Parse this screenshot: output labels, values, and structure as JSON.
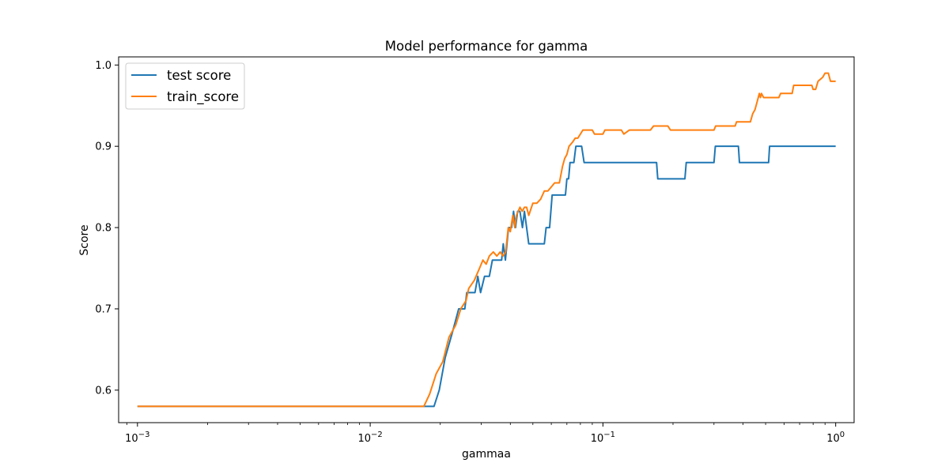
{
  "chart_data": {
    "type": "line",
    "title": "Model performance for gamma",
    "xlabel": "gammaa",
    "ylabel": "Score",
    "xscale": "log",
    "xlim": [
      0.00083,
      1.2
    ],
    "ylim": [
      0.56,
      1.01
    ],
    "x_ticks": [
      {
        "value": 0.001,
        "base": "10",
        "exp": "−3"
      },
      {
        "value": 0.01,
        "base": "10",
        "exp": "−2"
      },
      {
        "value": 0.1,
        "base": "10",
        "exp": "−1"
      },
      {
        "value": 1,
        "base": "10",
        "exp": "0"
      }
    ],
    "y_ticks": [
      {
        "value": 0.6,
        "label": "0.6"
      },
      {
        "value": 0.7,
        "label": "0.7"
      },
      {
        "value": 0.8,
        "label": "0.8"
      },
      {
        "value": 0.9,
        "label": "0.9"
      },
      {
        "value": 1.0,
        "label": "1.0"
      }
    ],
    "grid": false,
    "legend_position": "upper-left",
    "series": [
      {
        "name": "test score",
        "color": "#1f77b4",
        "points": [
          [
            0.001,
            0.58
          ],
          [
            0.0017,
            0.58
          ],
          [
            0.005,
            0.58
          ],
          [
            0.01,
            0.58
          ],
          [
            0.017,
            0.58
          ],
          [
            0.0188,
            0.58
          ],
          [
            0.0198,
            0.6
          ],
          [
            0.021,
            0.64
          ],
          [
            0.0225,
            0.67
          ],
          [
            0.024,
            0.7
          ],
          [
            0.0255,
            0.7
          ],
          [
            0.026,
            0.72
          ],
          [
            0.0282,
            0.72
          ],
          [
            0.029,
            0.74
          ],
          [
            0.0298,
            0.72
          ],
          [
            0.031,
            0.74
          ],
          [
            0.0325,
            0.74
          ],
          [
            0.0335,
            0.76
          ],
          [
            0.0367,
            0.76
          ],
          [
            0.0373,
            0.78
          ],
          [
            0.0381,
            0.76
          ],
          [
            0.0393,
            0.8
          ],
          [
            0.0405,
            0.8
          ],
          [
            0.0413,
            0.82
          ],
          [
            0.0421,
            0.8
          ],
          [
            0.043,
            0.82
          ],
          [
            0.044,
            0.82
          ],
          [
            0.0451,
            0.8
          ],
          [
            0.046,
            0.82
          ],
          [
            0.047,
            0.8
          ],
          [
            0.048,
            0.78
          ],
          [
            0.056,
            0.78
          ],
          [
            0.057,
            0.8
          ],
          [
            0.059,
            0.8
          ],
          [
            0.0605,
            0.84
          ],
          [
            0.069,
            0.84
          ],
          [
            0.07,
            0.86
          ],
          [
            0.0712,
            0.86
          ],
          [
            0.0722,
            0.88
          ],
          [
            0.075,
            0.88
          ],
          [
            0.0765,
            0.9
          ],
          [
            0.081,
            0.9
          ],
          [
            0.083,
            0.88
          ],
          [
            0.17,
            0.88
          ],
          [
            0.172,
            0.86
          ],
          [
            0.225,
            0.86
          ],
          [
            0.228,
            0.88
          ],
          [
            0.3,
            0.88
          ],
          [
            0.304,
            0.9
          ],
          [
            0.382,
            0.9
          ],
          [
            0.386,
            0.88
          ],
          [
            0.515,
            0.88
          ],
          [
            0.52,
            0.9
          ],
          [
            0.7,
            0.9
          ],
          [
            1.0,
            0.9
          ]
        ]
      },
      {
        "name": "train_score",
        "color": "#ff7f0e",
        "points": [
          [
            0.001,
            0.58
          ],
          [
            0.005,
            0.58
          ],
          [
            0.01,
            0.58
          ],
          [
            0.017,
            0.58
          ],
          [
            0.018,
            0.595
          ],
          [
            0.0192,
            0.62
          ],
          [
            0.0205,
            0.635
          ],
          [
            0.0218,
            0.665
          ],
          [
            0.0233,
            0.68
          ],
          [
            0.0245,
            0.7
          ],
          [
            0.0258,
            0.71
          ],
          [
            0.0265,
            0.725
          ],
          [
            0.028,
            0.735
          ],
          [
            0.0295,
            0.75
          ],
          [
            0.0305,
            0.76
          ],
          [
            0.0315,
            0.755
          ],
          [
            0.0325,
            0.765
          ],
          [
            0.0338,
            0.77
          ],
          [
            0.035,
            0.765
          ],
          [
            0.0362,
            0.77
          ],
          [
            0.0372,
            0.765
          ],
          [
            0.0382,
            0.77
          ],
          [
            0.0392,
            0.8
          ],
          [
            0.04,
            0.795
          ],
          [
            0.041,
            0.815
          ],
          [
            0.0418,
            0.8
          ],
          [
            0.0425,
            0.815
          ],
          [
            0.044,
            0.825
          ],
          [
            0.045,
            0.82
          ],
          [
            0.046,
            0.825
          ],
          [
            0.047,
            0.825
          ],
          [
            0.048,
            0.815
          ],
          [
            0.05,
            0.83
          ],
          [
            0.052,
            0.83
          ],
          [
            0.054,
            0.835
          ],
          [
            0.056,
            0.845
          ],
          [
            0.058,
            0.845
          ],
          [
            0.06,
            0.85
          ],
          [
            0.062,
            0.855
          ],
          [
            0.065,
            0.855
          ],
          [
            0.067,
            0.875
          ],
          [
            0.0685,
            0.885
          ],
          [
            0.07,
            0.89
          ],
          [
            0.0715,
            0.9
          ],
          [
            0.074,
            0.905
          ],
          [
            0.076,
            0.91
          ],
          [
            0.078,
            0.91
          ],
          [
            0.08,
            0.915
          ],
          [
            0.082,
            0.92
          ],
          [
            0.09,
            0.92
          ],
          [
            0.092,
            0.915
          ],
          [
            0.1,
            0.915
          ],
          [
            0.102,
            0.92
          ],
          [
            0.12,
            0.92
          ],
          [
            0.123,
            0.915
          ],
          [
            0.13,
            0.92
          ],
          [
            0.16,
            0.92
          ],
          [
            0.165,
            0.925
          ],
          [
            0.19,
            0.925
          ],
          [
            0.195,
            0.92
          ],
          [
            0.26,
            0.92
          ],
          [
            0.3,
            0.92
          ],
          [
            0.305,
            0.925
          ],
          [
            0.37,
            0.925
          ],
          [
            0.375,
            0.93
          ],
          [
            0.43,
            0.93
          ],
          [
            0.44,
            0.94
          ],
          [
            0.45,
            0.945
          ],
          [
            0.46,
            0.955
          ],
          [
            0.47,
            0.965
          ],
          [
            0.475,
            0.96
          ],
          [
            0.48,
            0.965
          ],
          [
            0.49,
            0.96
          ],
          [
            0.57,
            0.96
          ],
          [
            0.58,
            0.965
          ],
          [
            0.65,
            0.965
          ],
          [
            0.66,
            0.975
          ],
          [
            0.79,
            0.975
          ],
          [
            0.8,
            0.97
          ],
          [
            0.82,
            0.97
          ],
          [
            0.84,
            0.98
          ],
          [
            0.88,
            0.985
          ],
          [
            0.9,
            0.99
          ],
          [
            0.93,
            0.99
          ],
          [
            0.95,
            0.98
          ],
          [
            1.0,
            0.98
          ]
        ]
      }
    ]
  }
}
